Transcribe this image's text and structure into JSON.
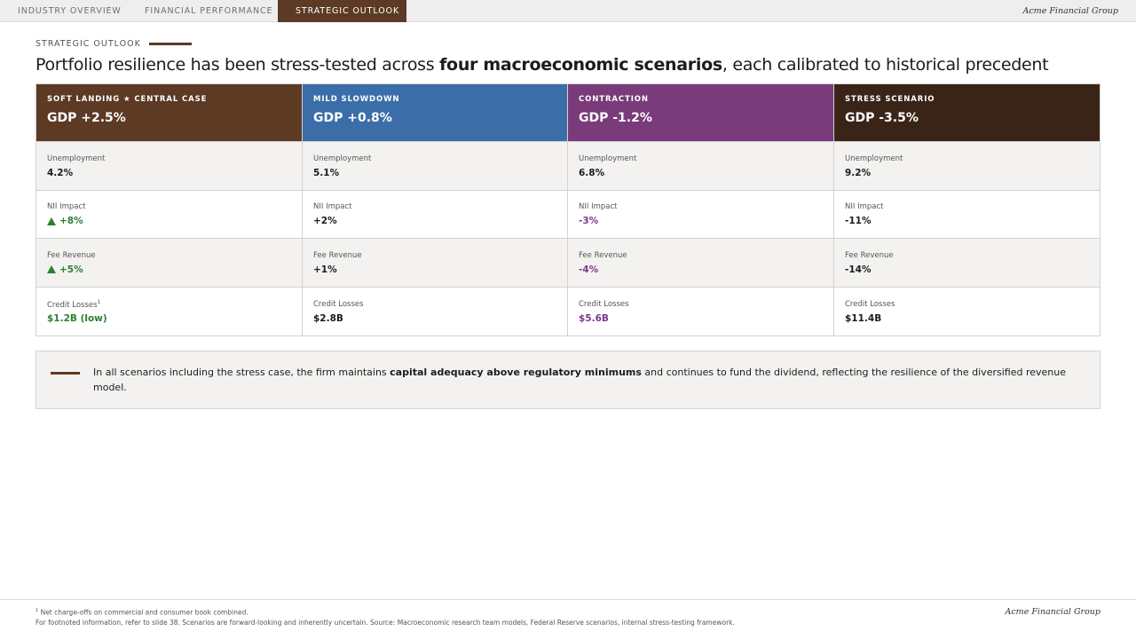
{
  "nav": {
    "tabs": [
      "INDUSTRY OVERVIEW",
      "FINANCIAL PERFORMANCE",
      "STRATEGIC OUTLOOK"
    ],
    "active_tab": "STRATEGIC OUTLOOK",
    "brand": "Acme Financial Group"
  },
  "header": {
    "eyebrow": "STRATEGIC OUTLOOK",
    "title_pre": "Portfolio resilience has been stress-tested across ",
    "title_bold": "four macroeconomic scenarios",
    "title_post": ", each calibrated to historical precedent"
  },
  "scenarios": [
    {
      "label": "SOFT LANDING ★ CENTRAL CASE",
      "gdp": "GDP +2.5%",
      "color": "#5c3a24",
      "unemployment_label": "Unemployment",
      "unemployment": "4.2%",
      "nii_label": "NII Impact",
      "nii": "+8%",
      "fee_label": "Fee Revenue",
      "fee": "+5%",
      "credit_label": "Credit Losses",
      "credit_sup": "1",
      "credit": "$1.2B (low)"
    },
    {
      "label": "MILD SLOWDOWN",
      "gdp": "GDP +0.8%",
      "color": "#3b6ea8",
      "unemployment_label": "Unemployment",
      "unemployment": "5.1%",
      "nii_label": "NII Impact",
      "nii": "+2%",
      "fee_label": "Fee Revenue",
      "fee": "+1%",
      "credit_label": "Credit Losses",
      "credit": "$2.8B"
    },
    {
      "label": "CONTRACTION",
      "gdp": "GDP -1.2%",
      "color": "#7a3b7b",
      "unemployment_label": "Unemployment",
      "unemployment": "6.8%",
      "nii_label": "NII Impact",
      "nii": "-3%",
      "fee_label": "Fee Revenue",
      "fee": "-4%",
      "credit_label": "Credit Losses",
      "credit": "$5.6B"
    },
    {
      "label": "STRESS SCENARIO",
      "gdp": "GDP -3.5%",
      "color": "#3a2418",
      "unemployment_label": "Unemployment",
      "unemployment": "9.2%",
      "nii_label": "NII Impact",
      "nii": "-11%",
      "fee_label": "Fee Revenue",
      "fee": "-14%",
      "credit_label": "Credit Losses",
      "credit": "$11.4B"
    }
  ],
  "callout": {
    "pre": "In all scenarios including the stress case, the firm maintains ",
    "bold": "capital adequacy above regulatory minimums",
    "post": " and continues to fund the dividend, reflecting the resilience of the diversified revenue model."
  },
  "footer": {
    "footnote_marker": "1",
    "footnote_text": "Net charge-offs on commercial and consumer book combined.",
    "source": "For footnoted information, refer to slide 38. Scenarios are forward-looking and inherently uncertain. Source: Macroeconomic research team models, Federal Reserve scenarios, internal stress-testing framework.",
    "brand": "Acme Financial Group"
  },
  "colors": {
    "accent": "#5c3a24",
    "positive": "#2e7d32",
    "negative_highlight": "#7a3a8a"
  },
  "icons": {
    "up_indicator": "triangle-up-icon"
  }
}
